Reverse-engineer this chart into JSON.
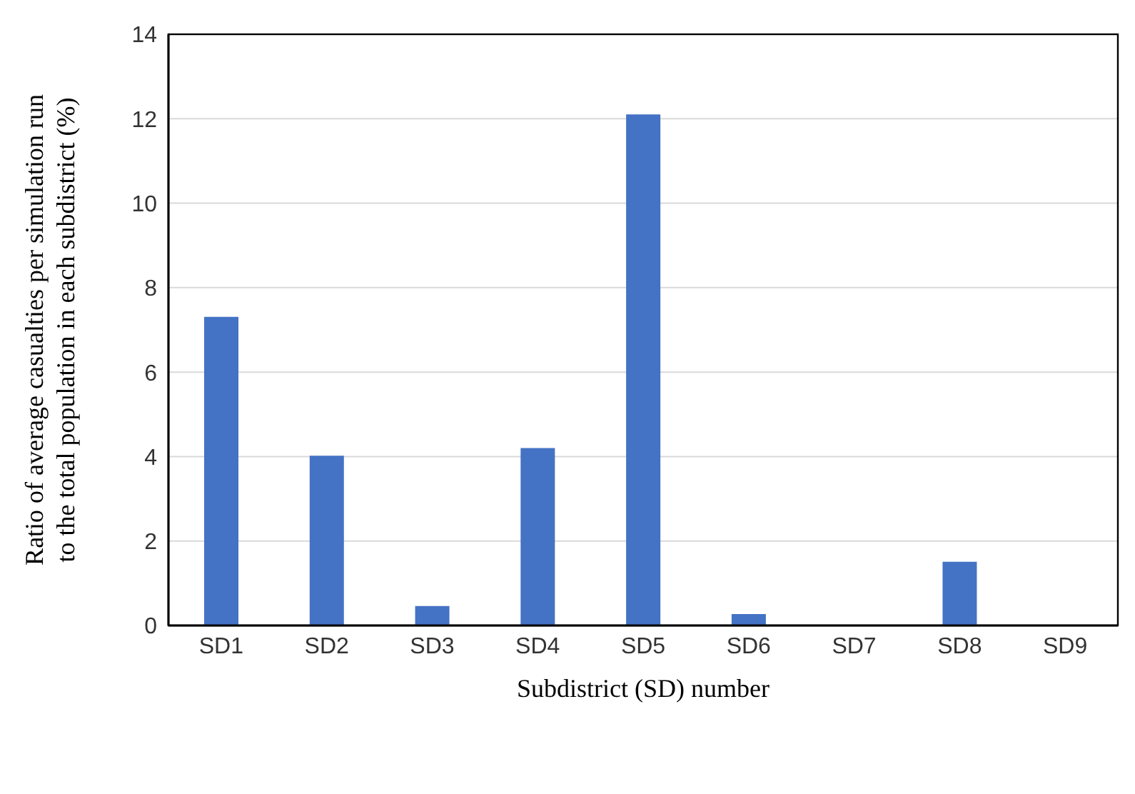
{
  "chart_data": {
    "type": "bar",
    "xlabel": "Subdistrict (SD) number",
    "ylabel": "Ratio of average casualties per simulation run to the total population in each subdistrict (%)",
    "categories": [
      "SD1",
      "SD2",
      "SD3",
      "SD4",
      "SD5",
      "SD6",
      "SD7",
      "SD8",
      "SD9"
    ],
    "values": [
      7.31,
      4.02,
      0.46,
      4.2,
      12.1,
      0.27,
      0,
      1.51,
      0
    ],
    "color": "#4472c4",
    "ylim": [
      0,
      14
    ],
    "yticks": [
      0,
      2,
      4,
      6,
      8,
      10,
      12,
      14
    ],
    "grid": "y"
  }
}
